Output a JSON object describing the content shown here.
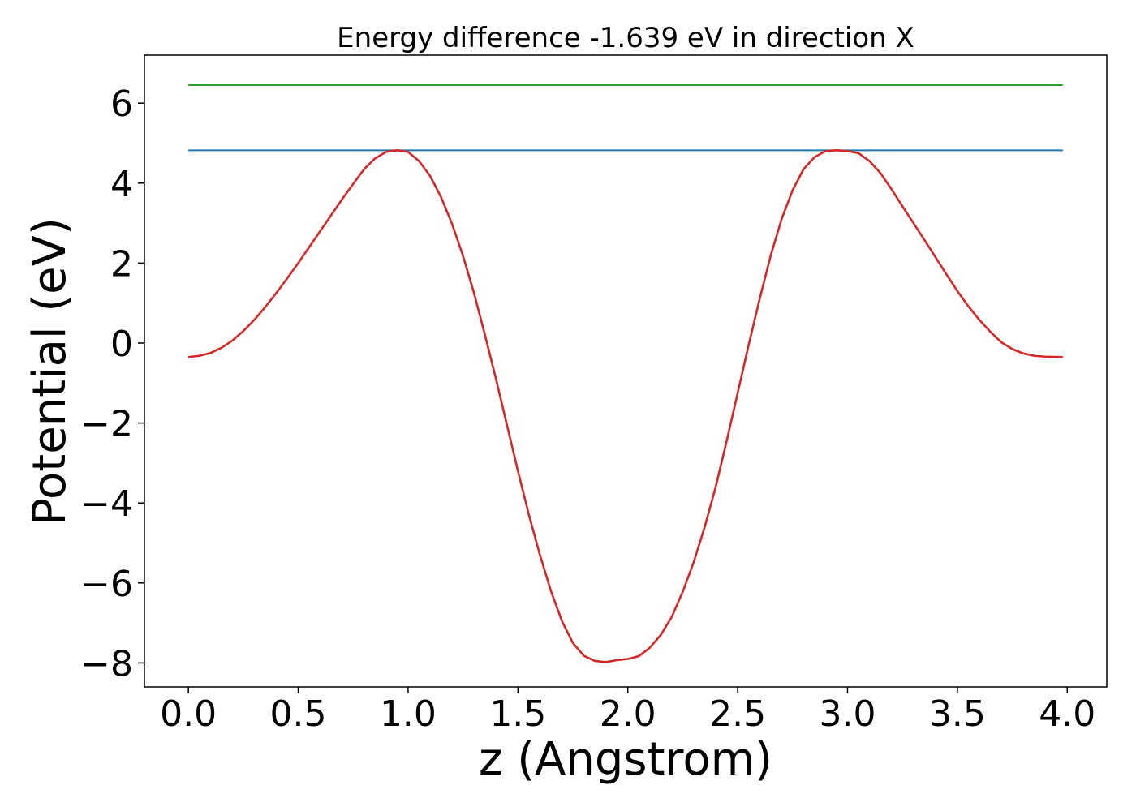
{
  "chart_data": {
    "type": "line",
    "title": "Energy difference -1.639 eV in direction X",
    "xlabel": "z (Angstrom)",
    "ylabel": "Potential (eV)",
    "xlim": [
      -0.2,
      4.18
    ],
    "ylim": [
      -8.6,
      7.2
    ],
    "xticks": [
      0.0,
      0.5,
      1.0,
      1.5,
      2.0,
      2.5,
      3.0,
      3.5,
      4.0
    ],
    "xtick_labels": [
      "0.0",
      "0.5",
      "1.0",
      "1.5",
      "2.0",
      "2.5",
      "3.0",
      "3.5",
      "4.0"
    ],
    "yticks": [
      -8,
      -6,
      -4,
      -2,
      0,
      2,
      4,
      6
    ],
    "ytick_labels": [
      "−8",
      "−6",
      "−4",
      "−2",
      "0",
      "2",
      "4",
      "6"
    ],
    "grid": false,
    "series": [
      {
        "color": "#2ca02c",
        "x": [
          0.0,
          3.98
        ],
        "y": [
          6.45,
          6.45
        ]
      },
      {
        "color": "#1f77b4",
        "x": [
          0.0,
          3.98
        ],
        "y": [
          4.82,
          4.82
        ]
      },
      {
        "color": "#d62728",
        "x": [
          0.0,
          0.05,
          0.1,
          0.15,
          0.2,
          0.25,
          0.3,
          0.35,
          0.4,
          0.45,
          0.5,
          0.55,
          0.6,
          0.65,
          0.7,
          0.75,
          0.8,
          0.85,
          0.9,
          0.95,
          1.0,
          1.05,
          1.1,
          1.15,
          1.2,
          1.25,
          1.3,
          1.35,
          1.4,
          1.45,
          1.5,
          1.55,
          1.6,
          1.65,
          1.7,
          1.75,
          1.8,
          1.85,
          1.9,
          1.95,
          2.0,
          2.05,
          2.1,
          2.15,
          2.2,
          2.25,
          2.3,
          2.35,
          2.4,
          2.45,
          2.5,
          2.55,
          2.6,
          2.65,
          2.7,
          2.75,
          2.8,
          2.85,
          2.9,
          2.95,
          3.0,
          3.05,
          3.1,
          3.15,
          3.2,
          3.25,
          3.3,
          3.35,
          3.4,
          3.45,
          3.5,
          3.55,
          3.6,
          3.65,
          3.7,
          3.75,
          3.8,
          3.85,
          3.9,
          3.98
        ],
        "y": [
          -0.35,
          -0.32,
          -0.25,
          -0.12,
          0.06,
          0.3,
          0.58,
          0.9,
          1.25,
          1.62,
          2.0,
          2.4,
          2.8,
          3.2,
          3.6,
          3.98,
          4.35,
          4.62,
          4.78,
          4.82,
          4.78,
          4.55,
          4.18,
          3.65,
          2.98,
          2.18,
          1.25,
          0.2,
          -0.9,
          -2.05,
          -3.2,
          -4.3,
          -5.3,
          -6.2,
          -6.95,
          -7.5,
          -7.82,
          -7.95,
          -7.98,
          -7.93,
          -7.9,
          -7.83,
          -7.62,
          -7.3,
          -6.85,
          -6.22,
          -5.48,
          -4.6,
          -3.6,
          -2.45,
          -1.25,
          -0.05,
          1.1,
          2.18,
          3.1,
          3.82,
          4.35,
          4.65,
          4.8,
          4.82,
          4.8,
          4.75,
          4.55,
          4.25,
          3.85,
          3.42,
          3.0,
          2.58,
          2.15,
          1.72,
          1.3,
          0.92,
          0.58,
          0.28,
          0.02,
          -0.15,
          -0.26,
          -0.32,
          -0.34,
          -0.35
        ]
      }
    ]
  }
}
